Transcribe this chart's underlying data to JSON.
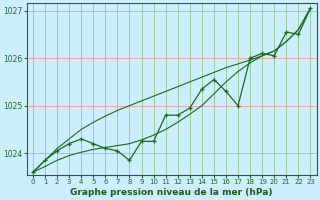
{
  "hours": [
    0,
    1,
    2,
    3,
    4,
    5,
    6,
    7,
    8,
    9,
    10,
    11,
    12,
    13,
    14,
    15,
    16,
    17,
    18,
    19,
    20,
    21,
    22,
    23
  ],
  "pressure_main": [
    1023.6,
    1023.85,
    1024.05,
    1024.2,
    1024.3,
    1024.2,
    1024.1,
    1024.05,
    1023.85,
    1024.25,
    1024.25,
    1024.8,
    1024.8,
    1024.95,
    1025.35,
    1025.55,
    1025.3,
    1025.0,
    1026.0,
    1026.1,
    1026.05,
    1026.55,
    1026.5,
    1027.05
  ],
  "trend1": [
    1023.6,
    1023.85,
    1024.1,
    1024.3,
    1024.5,
    1024.65,
    1024.78,
    1024.9,
    1025.0,
    1025.1,
    1025.2,
    1025.3,
    1025.4,
    1025.5,
    1025.6,
    1025.7,
    1025.8,
    1025.88,
    1025.96,
    1026.05,
    1026.15,
    1026.35,
    1026.6,
    1027.05
  ],
  "trend2": [
    1023.6,
    1023.72,
    1023.85,
    1023.95,
    1024.02,
    1024.08,
    1024.12,
    1024.16,
    1024.2,
    1024.28,
    1024.38,
    1024.5,
    1024.65,
    1024.82,
    1025.0,
    1025.25,
    1025.5,
    1025.72,
    1025.9,
    1026.05,
    1026.15,
    1026.35,
    1026.6,
    1027.05
  ],
  "ylim_min": 1023.55,
  "ylim_max": 1027.15,
  "yticks": [
    1024,
    1025,
    1026,
    1027
  ],
  "bg_color": "#cceeff",
  "hgrid_color": "#ff9999",
  "vgrid_color": "#88cc88",
  "line_color": "#1a6b1a",
  "marker": "+",
  "xlabel": "Graphe pression niveau de la mer (hPa)",
  "xlabel_color": "#1a5a1a",
  "tick_fontsize": 5.0,
  "xlabel_fontsize": 6.5
}
